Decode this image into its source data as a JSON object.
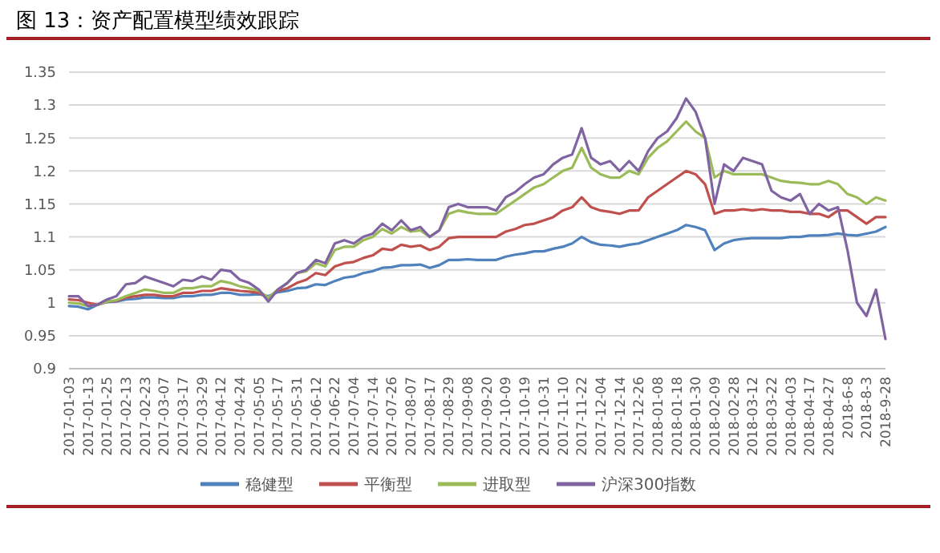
{
  "chart_data": {
    "type": "line",
    "title": "图 13：资产配置模型绩效跟踪",
    "categories": [
      "2017-01-03",
      null,
      "2017-01-13",
      null,
      "2017-01-25",
      null,
      "2017-02-13",
      null,
      "2017-02-23",
      null,
      "2017-03-07",
      null,
      "2017-03-17",
      null,
      "2017-03-29",
      null,
      "2017-04-12",
      null,
      "2017-04-24",
      null,
      "2017-05-05",
      null,
      "2017-05-17",
      null,
      "2017-05-31",
      null,
      "2017-06-12",
      null,
      "2017-06-22",
      null,
      "2017-07-04",
      null,
      "2017-07-14",
      null,
      "2017-07-26",
      null,
      "2017-08-07",
      null,
      "2017-08-17",
      null,
      "2017-08-29",
      null,
      "2017-09-08",
      null,
      "2017-09-20",
      null,
      "2017-10-09",
      null,
      "2017-10-19",
      null,
      "2017-10-31",
      null,
      "2017-11-10",
      null,
      "2017-11-22",
      null,
      "2017-12-04",
      null,
      "2017-12-14",
      null,
      "2017-12-26",
      null,
      "2018-01-08",
      null,
      "2018-01-18",
      null,
      "2018-01-30",
      null,
      "2018-02-09",
      null,
      "2018-02-28",
      null,
      "2018-03-12",
      null,
      "2018-03-22",
      null,
      "2018-04-03",
      null,
      "2018-04-17",
      null,
      "2018-04-27",
      null,
      "2018-6-8",
      null,
      "2018-8-3",
      null,
      "2018-9-28"
    ],
    "series": [
      {
        "name": "稳健型",
        "color": "#4f81bd",
        "values": [
          0.995,
          0.994,
          0.99,
          0.997,
          1.001,
          1.002,
          1.005,
          1.006,
          1.008,
          1.008,
          1.007,
          1.007,
          1.01,
          1.01,
          1.012,
          1.012,
          1.015,
          1.015,
          1.012,
          1.012,
          1.013,
          1.01,
          1.016,
          1.018,
          1.022,
          1.023,
          1.028,
          1.027,
          1.033,
          1.038,
          1.04,
          1.045,
          1.048,
          1.053,
          1.054,
          1.057,
          1.057,
          1.058,
          1.053,
          1.057,
          1.065,
          1.065,
          1.066,
          1.065,
          1.065,
          1.065,
          1.07,
          1.073,
          1.075,
          1.078,
          1.078,
          1.082,
          1.085,
          1.09,
          1.1,
          1.092,
          1.088,
          1.087,
          1.085,
          1.088,
          1.09,
          1.095,
          1.1,
          1.105,
          1.11,
          1.118,
          1.115,
          1.11,
          1.08,
          1.09,
          1.095,
          1.097,
          1.098,
          1.098,
          1.098,
          1.098,
          1.1,
          1.1,
          1.102,
          1.102,
          1.103,
          1.105,
          1.103,
          1.102,
          1.105,
          1.108,
          1.115
        ]
      },
      {
        "name": "平衡型",
        "color": "#c0504d",
        "values": [
          1.005,
          1.004,
          1.0,
          0.997,
          1.002,
          1.003,
          1.008,
          1.01,
          1.012,
          1.012,
          1.01,
          1.01,
          1.015,
          1.015,
          1.018,
          1.018,
          1.022,
          1.02,
          1.018,
          1.017,
          1.015,
          1.008,
          1.018,
          1.022,
          1.03,
          1.035,
          1.045,
          1.042,
          1.055,
          1.06,
          1.062,
          1.068,
          1.072,
          1.082,
          1.08,
          1.088,
          1.085,
          1.087,
          1.08,
          1.085,
          1.098,
          1.1,
          1.1,
          1.1,
          1.1,
          1.1,
          1.108,
          1.112,
          1.118,
          1.12,
          1.125,
          1.13,
          1.14,
          1.145,
          1.16,
          1.145,
          1.14,
          1.138,
          1.135,
          1.14,
          1.14,
          1.16,
          1.17,
          1.18,
          1.19,
          1.2,
          1.195,
          1.18,
          1.135,
          1.14,
          1.14,
          1.142,
          1.14,
          1.142,
          1.14,
          1.14,
          1.138,
          1.138,
          1.135,
          1.135,
          1.13,
          1.14,
          1.14,
          1.13,
          1.12,
          1.13,
          1.13
        ]
      },
      {
        "name": "进取型",
        "color": "#9bbb59",
        "values": [
          1.0,
          0.999,
          0.995,
          0.997,
          1.002,
          1.004,
          1.01,
          1.015,
          1.02,
          1.018,
          1.015,
          1.015,
          1.022,
          1.022,
          1.025,
          1.025,
          1.033,
          1.03,
          1.025,
          1.022,
          1.018,
          1.008,
          1.02,
          1.03,
          1.045,
          1.048,
          1.06,
          1.055,
          1.08,
          1.085,
          1.085,
          1.095,
          1.1,
          1.112,
          1.105,
          1.115,
          1.108,
          1.11,
          1.1,
          1.11,
          1.135,
          1.14,
          1.137,
          1.135,
          1.135,
          1.135,
          1.145,
          1.155,
          1.165,
          1.175,
          1.18,
          1.19,
          1.2,
          1.205,
          1.235,
          1.205,
          1.195,
          1.19,
          1.19,
          1.2,
          1.195,
          1.22,
          1.235,
          1.245,
          1.26,
          1.275,
          1.26,
          1.25,
          1.19,
          1.2,
          1.195,
          1.195,
          1.195,
          1.195,
          1.19,
          1.185,
          1.183,
          1.182,
          1.18,
          1.18,
          1.185,
          1.18,
          1.165,
          1.16,
          1.15,
          1.16,
          1.155
        ]
      },
      {
        "name": "沪深300指数",
        "color": "#8064a2",
        "values": [
          1.01,
          1.01,
          0.995,
          0.997,
          1.005,
          1.01,
          1.028,
          1.03,
          1.04,
          1.035,
          1.03,
          1.025,
          1.035,
          1.033,
          1.04,
          1.035,
          1.05,
          1.048,
          1.035,
          1.03,
          1.02,
          1.002,
          1.02,
          1.03,
          1.045,
          1.05,
          1.065,
          1.06,
          1.09,
          1.095,
          1.09,
          1.1,
          1.105,
          1.12,
          1.11,
          1.125,
          1.11,
          1.115,
          1.1,
          1.11,
          1.145,
          1.15,
          1.145,
          1.145,
          1.145,
          1.14,
          1.16,
          1.168,
          1.18,
          1.19,
          1.195,
          1.21,
          1.22,
          1.225,
          1.265,
          1.22,
          1.21,
          1.215,
          1.2,
          1.215,
          1.2,
          1.23,
          1.25,
          1.26,
          1.28,
          1.31,
          1.29,
          1.25,
          1.15,
          1.21,
          1.2,
          1.22,
          1.215,
          1.21,
          1.17,
          1.16,
          1.155,
          1.165,
          1.135,
          1.15,
          1.14,
          1.145,
          1.08,
          1.0,
          0.98,
          1.02,
          0.945
        ]
      }
    ],
    "ylim": [
      0.9,
      1.35
    ],
    "yticks": [
      0.9,
      0.95,
      1,
      1.05,
      1.1,
      1.15,
      1.2,
      1.25,
      1.3,
      1.35
    ],
    "grid": "y",
    "legend": "bottom",
    "marker": "none",
    "line_style": "solid"
  }
}
